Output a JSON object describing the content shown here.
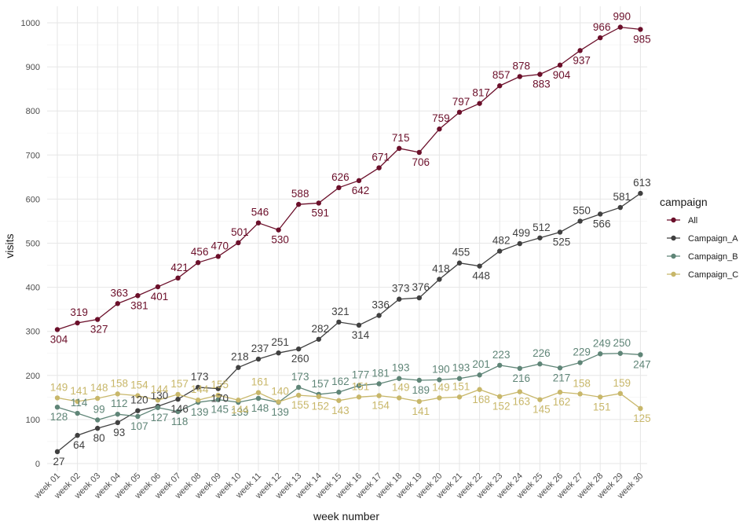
{
  "chart_data": {
    "type": "line",
    "xlabel": "week number",
    "ylabel": "visits",
    "ylim": [
      0,
      1000
    ],
    "yticks": [
      0,
      100,
      200,
      300,
      400,
      500,
      600,
      700,
      800,
      900,
      1000
    ],
    "grid": true,
    "legend": {
      "title": "campaign",
      "position": "right"
    },
    "categories": [
      "week 01",
      "week 02",
      "week 03",
      "week 04",
      "week 05",
      "week 06",
      "week 07",
      "week 08",
      "week 09",
      "week 10",
      "week 11",
      "week 12",
      "week 13",
      "week 14",
      "week 15",
      "week 16",
      "week 17",
      "week 18",
      "week 19",
      "week 20",
      "week 21",
      "week 22",
      "week 23",
      "week 24",
      "week 25",
      "week 26",
      "week 27",
      "week 28",
      "week 29",
      "week 30"
    ],
    "series": [
      {
        "name": "All",
        "color": "#6b0f2a",
        "values": [
          304,
          319,
          327,
          363,
          381,
          401,
          421,
          456,
          470,
          501,
          546,
          530,
          588,
          591,
          626,
          642,
          671,
          715,
          706,
          759,
          797,
          817,
          857,
          878,
          883,
          904,
          937,
          966,
          990,
          985
        ]
      },
      {
        "name": "Campaign_A",
        "color": "#404040",
        "values": [
          27,
          64,
          80,
          93,
          120,
          130,
          146,
          173,
          170,
          218,
          237,
          251,
          260,
          282,
          321,
          314,
          336,
          373,
          376,
          418,
          455,
          448,
          482,
          499,
          512,
          525,
          550,
          566,
          581,
          613
        ]
      },
      {
        "name": "Campaign_B",
        "color": "#5f8577",
        "values": [
          128,
          114,
          99,
          112,
          107,
          127,
          118,
          139,
          145,
          139,
          148,
          139,
          173,
          157,
          162,
          177,
          181,
          193,
          189,
          190,
          193,
          201,
          223,
          216,
          226,
          217,
          229,
          249,
          250,
          247
        ]
      },
      {
        "name": "Campaign_C",
        "color": "#c8b76a",
        "values": [
          149,
          141,
          148,
          158,
          154,
          144,
          157,
          144,
          155,
          144,
          161,
          140,
          155,
          152,
          143,
          151,
          154,
          149,
          141,
          149,
          151,
          168,
          152,
          163,
          145,
          162,
          158,
          151,
          159,
          125
        ]
      }
    ]
  }
}
